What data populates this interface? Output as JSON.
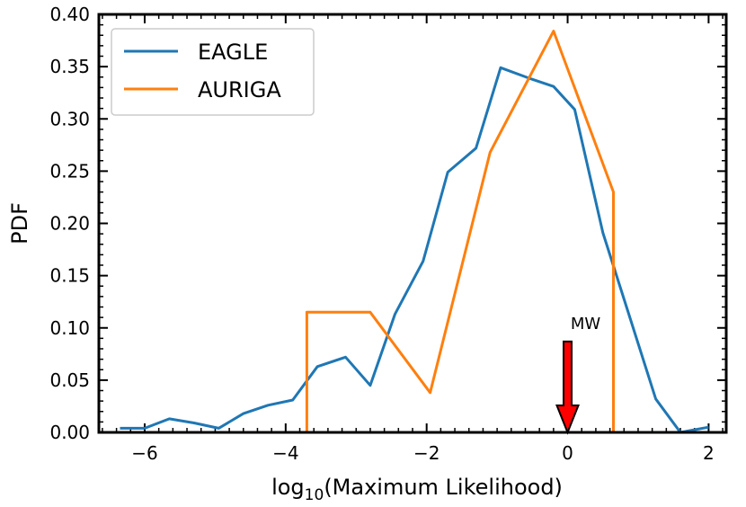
{
  "chart_data": {
    "type": "line",
    "xlabel_main": "log",
    "xlabel_sub": "10",
    "xlabel_rest": "(Maximum Likelihood)",
    "ylabel": "PDF",
    "xlim": [
      -6.65,
      2.25
    ],
    "ylim": [
      0,
      0.4
    ],
    "xticks": [
      -6,
      -4,
      -2,
      0,
      2
    ],
    "xtick_labels": [
      "−6",
      "−4",
      "−2",
      "0",
      "2"
    ],
    "yticks": [
      0,
      0.05,
      0.1,
      0.15,
      0.2,
      0.25,
      0.3,
      0.35,
      0.4
    ],
    "ytick_labels": [
      "0.00",
      "0.05",
      "0.10",
      "0.15",
      "0.20",
      "0.25",
      "0.30",
      "0.35",
      "0.40"
    ],
    "legend_position": "top-left",
    "series": [
      {
        "name": "EAGLE",
        "color": "#1f77b4",
        "x": [
          -6.35,
          -6.0,
          -5.65,
          -5.3,
          -4.95,
          -4.6,
          -4.25,
          -3.9,
          -3.55,
          -3.15,
          -2.8,
          -2.45,
          -2.05,
          -1.7,
          -1.3,
          -0.95,
          -0.55,
          -0.2,
          0.1,
          0.5,
          0.85,
          1.25,
          1.6,
          2.0
        ],
        "y": [
          0.004,
          0.004,
          0.013,
          0.009,
          0.004,
          0.018,
          0.026,
          0.031,
          0.063,
          0.072,
          0.045,
          0.113,
          0.164,
          0.249,
          0.272,
          0.349,
          0.339,
          0.331,
          0.309,
          0.191,
          0.117,
          0.032,
          0.0,
          0.005
        ]
      },
      {
        "name": "AURIGA",
        "color": "#ff7f0e",
        "x": [
          -3.7,
          -3.7,
          -2.8,
          -1.95,
          -1.1,
          -0.2,
          0.65,
          0.65
        ],
        "y": [
          0.0,
          0.115,
          0.115,
          0.038,
          0.268,
          0.384,
          0.23,
          0.0
        ]
      }
    ],
    "annotations": [
      {
        "text": "MW",
        "x": 0.0,
        "arrow_from_y": 0.087,
        "arrow_to_y": 0.0,
        "color": "#ff0000"
      }
    ]
  }
}
